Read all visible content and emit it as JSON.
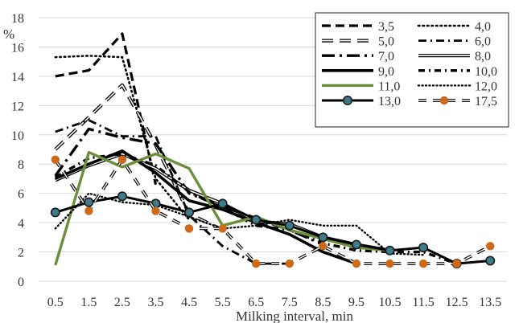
{
  "chart_data": {
    "type": "line",
    "title": "",
    "xlabel": "Milking interval, min",
    "ylabel": "%",
    "ylim": [
      0,
      18
    ],
    "yticks": [
      0,
      2,
      4,
      6,
      8,
      10,
      12,
      14,
      16,
      18
    ],
    "ytick_labels": [
      "0",
      "2",
      "4",
      "6",
      "8",
      "10",
      "12",
      "14",
      "16",
      "18"
    ],
    "categories": [
      "0.5",
      "1.5",
      "2.5",
      "3.5",
      "4.5",
      "5.5",
      "6.5",
      "7.5",
      "8.5",
      "9.5",
      "10.5",
      "11.5",
      "12.5",
      "13.5"
    ],
    "grid": "horizontal",
    "legend_position": "top-right",
    "series": [
      {
        "name": "3,5",
        "style": "dash-thick",
        "color": "#000000",
        "values": [
          14.0,
          14.4,
          16.9,
          6.6,
          null,
          null,
          null,
          null,
          null,
          null,
          null,
          null,
          null,
          null
        ]
      },
      {
        "name": "4,0",
        "style": "dotted",
        "color": "#000000",
        "values": [
          15.3,
          15.4,
          15.3,
          7.0,
          4.2,
          null,
          null,
          null,
          null,
          null,
          null,
          null,
          null,
          null
        ]
      },
      {
        "name": "5,0",
        "style": "double-dash",
        "color": "#000000",
        "values": [
          9.0,
          11.2,
          13.4,
          9.3,
          4.6,
          3.5,
          null,
          null,
          null,
          null,
          null,
          null,
          null,
          null
        ]
      },
      {
        "name": "6,0",
        "style": "dash-dot",
        "color": "#000000",
        "values": [
          10.2,
          11.0,
          9.9,
          9.9,
          4.5,
          2.4,
          1.2,
          1.2,
          null,
          null,
          null,
          null,
          null,
          null
        ]
      },
      {
        "name": "7,0",
        "style": "long-dash-dot",
        "color": "#000000",
        "values": [
          7.2,
          10.4,
          9.8,
          9.4,
          6.0,
          5.1,
          4.3,
          3.5,
          2.5,
          null,
          null,
          null,
          null,
          null
        ]
      },
      {
        "name": "8,0",
        "style": "double-solid",
        "color": "#000000",
        "values": [
          6.9,
          7.9,
          8.7,
          7.7,
          6.2,
          5.3,
          4.1,
          3.9,
          3.0,
          2.5,
          2.1,
          null,
          null,
          null
        ]
      },
      {
        "name": "9,0",
        "style": "solid-thick",
        "color": "#000000",
        "values": [
          7.0,
          8.0,
          8.9,
          7.4,
          5.5,
          4.9,
          4.0,
          3.2,
          2.0,
          1.2,
          null,
          null,
          null,
          null
        ]
      },
      {
        "name": "10,0",
        "style": "dash-dot-thick",
        "color": "#000000",
        "values": [
          7.1,
          8.4,
          8.7,
          7.9,
          6.1,
          5.0,
          3.8,
          3.5,
          2.6,
          2.1,
          2.0,
          2.0,
          1.2,
          null
        ]
      },
      {
        "name": "11,0",
        "style": "solid-green",
        "color": "#6b8e3a",
        "values": [
          1.1,
          8.8,
          7.8,
          8.7,
          7.7,
          3.8,
          4.4,
          3.5,
          2.9,
          2.3,
          2.1,
          null,
          null,
          null
        ]
      },
      {
        "name": "12,0",
        "style": "dotted-fine",
        "color": "#000000",
        "values": [
          3.6,
          6.0,
          5.4,
          5.2,
          4.4,
          3.6,
          3.8,
          4.2,
          3.8,
          3.8,
          1.9,
          1.8,
          null,
          null
        ]
      },
      {
        "name": "13,0",
        "style": "solid-marker",
        "color": "#000000",
        "marker_color": "#3d7a8a",
        "values": [
          4.7,
          5.4,
          5.8,
          5.3,
          4.7,
          5.3,
          4.2,
          3.8,
          3.0,
          2.5,
          2.1,
          2.3,
          1.2,
          1.4
        ]
      },
      {
        "name": "17,5",
        "style": "double-dash-marker",
        "color": "#000000",
        "marker_color": "#cc6a1a",
        "values": [
          8.3,
          4.8,
          8.3,
          4.8,
          3.6,
          3.6,
          1.2,
          1.2,
          2.4,
          1.2,
          1.2,
          1.2,
          1.2,
          2.4
        ]
      }
    ]
  }
}
